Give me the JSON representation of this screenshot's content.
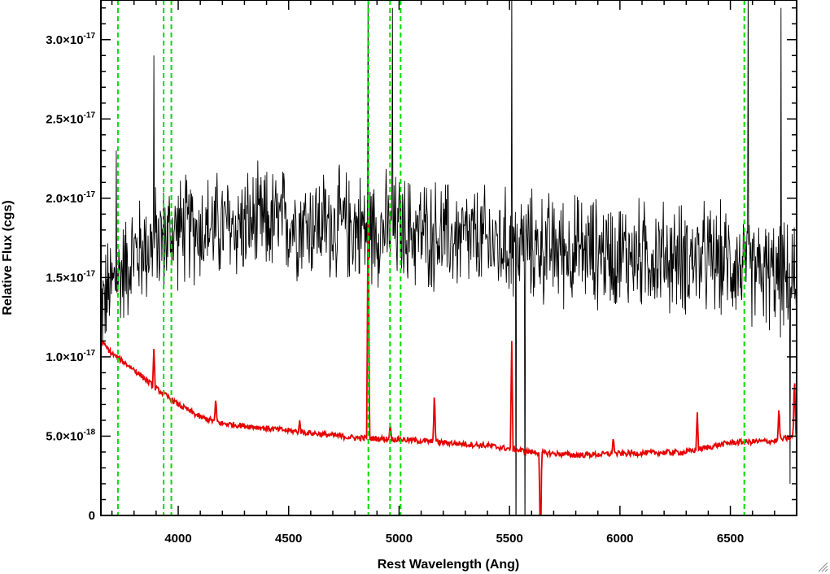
{
  "chart_data": {
    "type": "line",
    "xlabel": "Rest Wavelength (Ang)",
    "ylabel": "Relative Flux (cgs)",
    "xlim": [
      3650,
      6800
    ],
    "ylim": [
      0,
      3.25e-17
    ],
    "grid": false,
    "x_ticks": [
      {
        "value": 4000,
        "label": "4000"
      },
      {
        "value": 4500,
        "label": "4500"
      },
      {
        "value": 5000,
        "label": "5000"
      },
      {
        "value": 5500,
        "label": "5500"
      },
      {
        "value": 6000,
        "label": "6000"
      },
      {
        "value": 6500,
        "label": "6500"
      }
    ],
    "y_ticks": [
      {
        "value": 0,
        "mantissa": "0",
        "exp": ""
      },
      {
        "value": 5e-18,
        "mantissa": "5.0×10",
        "exp": "-18"
      },
      {
        "value": 1e-17,
        "mantissa": "1.0×10",
        "exp": "-17"
      },
      {
        "value": 1.5e-17,
        "mantissa": "1.5×10",
        "exp": "-17"
      },
      {
        "value": 2e-17,
        "mantissa": "2.0×10",
        "exp": "-17"
      },
      {
        "value": 2.5e-17,
        "mantissa": "2.5×10",
        "exp": "-17"
      },
      {
        "value": 3e-17,
        "mantissa": "3.0×10",
        "exp": "-17"
      }
    ],
    "series": [
      {
        "color": "#000000",
        "style": "noisy-spectrum",
        "continuum": [
          [
            3650,
            1.3e-17
          ],
          [
            3700,
            1.45e-17
          ],
          [
            3800,
            1.65e-17
          ],
          [
            4000,
            1.8e-17
          ],
          [
            4500,
            1.85e-17
          ],
          [
            5000,
            1.8e-17
          ],
          [
            5500,
            1.7e-17
          ],
          [
            6000,
            1.65e-17
          ],
          [
            6500,
            1.6e-17
          ],
          [
            6800,
            1.45e-17
          ]
        ],
        "noise_amplitude": 3.5e-18,
        "spikes": [
          [
            3720,
            2.3e-17
          ],
          [
            3890,
            2.9e-17
          ],
          [
            4860,
            3.3e-17
          ],
          [
            4970,
            3.2e-17
          ],
          [
            5510,
            3.4e-17
          ],
          [
            5530,
            -5e-18
          ],
          [
            5570,
            -3e-18
          ],
          [
            6580,
            3.4e-17
          ],
          [
            6730,
            3.2e-17
          ],
          [
            6770,
            2e-18
          ]
        ]
      },
      {
        "color": "#e60000",
        "style": "model",
        "points": [
          [
            3650,
            1.1e-17
          ],
          [
            3700,
            1.02e-17
          ],
          [
            3800,
            9.2e-18
          ],
          [
            3900,
            8e-18
          ],
          [
            4000,
            7e-18
          ],
          [
            4100,
            6.2e-18
          ],
          [
            4200,
            5.8e-18
          ],
          [
            4400,
            5.5e-18
          ],
          [
            4600,
            5.2e-18
          ],
          [
            4800,
            4.9e-18
          ],
          [
            5000,
            4.8e-18
          ],
          [
            5200,
            4.6e-18
          ],
          [
            5400,
            4.4e-18
          ],
          [
            5600,
            4e-18
          ],
          [
            5800,
            3.8e-18
          ],
          [
            6000,
            3.9e-18
          ],
          [
            6300,
            4e-18
          ],
          [
            6500,
            4.6e-18
          ],
          [
            6700,
            4.7e-18
          ],
          [
            6800,
            5e-18
          ]
        ],
        "lines": [
          [
            3890,
            1.05e-17
          ],
          [
            4170,
            7.5e-18
          ],
          [
            4550,
            6e-18
          ],
          [
            4860,
            2.15e-17
          ],
          [
            4960,
            5.8e-18
          ],
          [
            5160,
            8e-18
          ],
          [
            5510,
            1.1e-17
          ],
          [
            5640,
            -3e-18
          ],
          [
            5970,
            5e-18
          ],
          [
            6350,
            6.5e-18
          ],
          [
            6720,
            7e-18
          ],
          [
            6790,
            9e-18
          ]
        ]
      }
    ],
    "vlines": {
      "color": "#00dd00",
      "style": "dashed",
      "x": [
        3727,
        3934,
        3969,
        4861,
        4959,
        5007,
        6563
      ]
    }
  }
}
